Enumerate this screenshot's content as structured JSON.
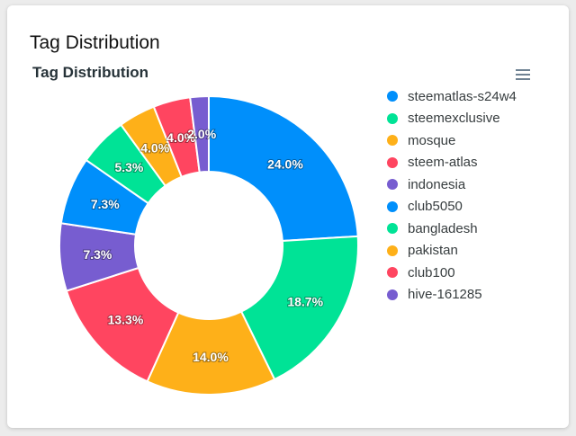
{
  "card": {
    "title": "Tag Distribution"
  },
  "chart_data": {
    "type": "pie",
    "title": "Tag Distribution",
    "categories": [
      "steematlas-s24w4",
      "steemexclusive",
      "mosque",
      "steem-atlas",
      "indonesia",
      "club5050",
      "bangladesh",
      "pakistan",
      "club100",
      "hive-161285"
    ],
    "values": [
      24.0,
      18.7,
      14.0,
      13.3,
      7.3,
      7.3,
      5.3,
      4.0,
      4.0,
      2.0
    ],
    "labels": [
      "24.0%",
      "18.7%",
      "14.0%",
      "13.3%",
      "7.3%",
      "7.3%",
      "5.3%",
      "4.0%",
      "4.0%",
      "2.0%"
    ],
    "colors": [
      "#008ffb",
      "#00e396",
      "#feb019",
      "#ff4560",
      "#775dd0",
      "#008ffb",
      "#00e396",
      "#feb019",
      "#ff4560",
      "#775dd0"
    ],
    "legend_position": "right",
    "donut": true
  },
  "toolbar": {
    "menu_icon": "hamburger-menu-icon"
  }
}
